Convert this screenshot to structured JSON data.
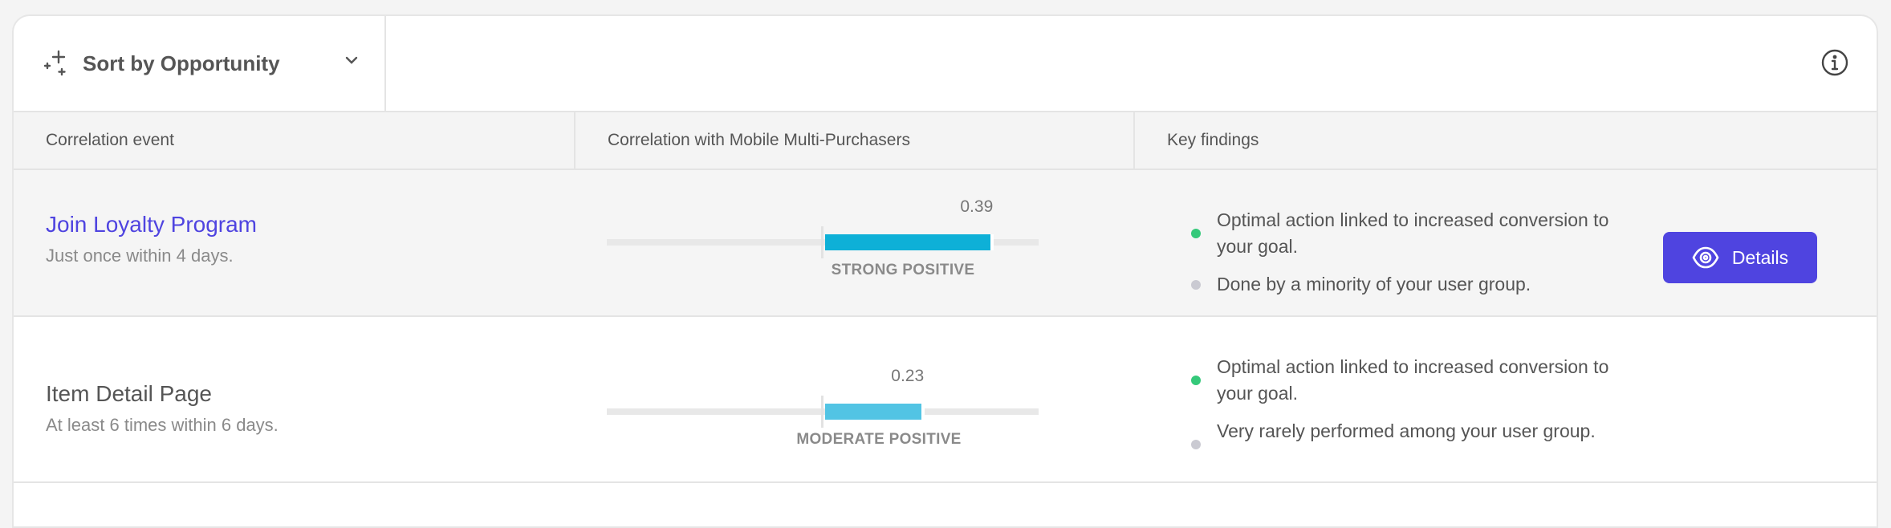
{
  "toolbar": {
    "sort_label": "Sort by Opportunity",
    "sort_icon": "sparkle-icon",
    "info_icon": "info-icon"
  },
  "table": {
    "headers": [
      "Correlation event",
      "Correlation with Mobile Multi-Purchasers",
      "Key findings"
    ],
    "scale_range": [
      -0.5,
      0.5
    ],
    "rows": [
      {
        "event": "Join Loyalty Program",
        "subtitle": "Just once within 4 days.",
        "value": 0.39,
        "value_label": "0.39",
        "category": "STRONG POSITIVE",
        "bar_color": "#0eb0d7",
        "findings": [
          {
            "text": "Optimal action linked to increased conversion to your goal.",
            "dot_color": "#35c97a"
          },
          {
            "text": "Done by a minority of your user group.",
            "dot_color": "#cacad2"
          }
        ],
        "action_label": "Details"
      },
      {
        "event": "Item Detail Page",
        "subtitle": "At least 6 times within 6 days.",
        "value": 0.23,
        "value_label": "0.23",
        "category": "MODERATE POSITIVE",
        "bar_color": "#52c4e4",
        "findings": [
          {
            "text": "Optimal action linked to increased conversion to your goal.",
            "dot_color": "#35c97a"
          },
          {
            "text": "Very rarely performed among your user group.",
            "dot_color": "#cacad2"
          }
        ]
      }
    ]
  },
  "colors": {
    "accent": "#4f44e0"
  }
}
